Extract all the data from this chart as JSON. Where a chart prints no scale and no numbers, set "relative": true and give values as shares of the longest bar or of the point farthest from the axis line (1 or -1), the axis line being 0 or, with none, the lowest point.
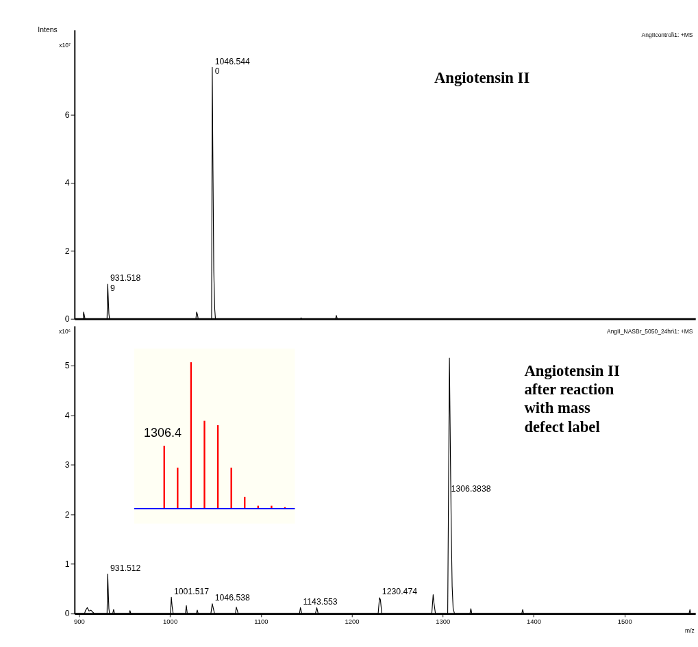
{
  "chart_data": [
    {
      "type": "line",
      "ylabel": "Intens",
      "xlim": [
        895,
        1578
      ],
      "ylim": [
        0,
        8.5
      ],
      "yticks": [
        0,
        2,
        4,
        6
      ],
      "tick_labels": "y",
      "grid": false,
      "marker": "none",
      "line_style": "solid",
      "annotations": [
        "x10⁷",
        "AngIIcontrol\\1: +MS",
        "Angiotensin II",
        {
          "text": "931.518\n9",
          "x": 931.5,
          "y": 1.02
        },
        {
          "text": "1046.544\n0",
          "x": 1046.5,
          "y": 7.4
        }
      ],
      "series": [
        {
          "color": "#000000",
          "x": [
            895,
            904.5,
            905,
            905.8,
            906.5,
            930.8,
            931.5,
            932.2,
            932.8,
            933.5,
            1028.5,
            1029.3,
            1030.3,
            1031,
            1045.8,
            1046.5,
            1047.3,
            1048.2,
            1049.2,
            1050,
            1143.5,
            1144.2,
            1145,
            1182.2,
            1183,
            1184,
            1578
          ],
          "values": [
            0,
            0,
            0.2,
            0.1,
            0,
            0,
            1.02,
            0.55,
            0.15,
            0,
            0,
            0.2,
            0.12,
            0,
            0,
            7.4,
            4.35,
            1.4,
            0.3,
            0,
            0,
            0.03,
            0,
            0,
            0.1,
            0,
            0
          ]
        }
      ]
    },
    {
      "type": "line",
      "xlabel": "m/z",
      "xlim": [
        895,
        1578
      ],
      "xticks": [
        900,
        1000,
        1100,
        1200,
        1300,
        1400,
        1500
      ],
      "ylim": [
        0,
        5.8
      ],
      "yticks": [
        0,
        1,
        2,
        3,
        4,
        5
      ],
      "grid": false,
      "marker": "none",
      "line_style": "solid",
      "annotations": [
        "x10⁶",
        "AngII_NASBr_5050_24hr\\1: +MS",
        "Angiotensin II\nafter reaction\nwith mass\ndefect label",
        {
          "text": "931.512",
          "x": 931.5,
          "y": 0.8
        },
        {
          "text": "1001.517",
          "x": 1001.5,
          "y": 0.33
        },
        {
          "text": "1046.538",
          "x": 1046.5,
          "y": 0.2
        },
        {
          "text": "1143.553",
          "x": 1143.5,
          "y": 0.12
        },
        {
          "text": "1230.474",
          "x": 1230.5,
          "y": 0.32
        },
        {
          "text": "1306.3838",
          "x": 1306.4,
          "y": 2.4
        }
      ],
      "series": [
        {
          "color": "#000000",
          "x": [
            895,
            906,
            907,
            909,
            911,
            913,
            915,
            917,
            930.8,
            931.5,
            932.2,
            932.8,
            933.5,
            937,
            938,
            939,
            955,
            956,
            957,
            1000.5,
            1001.5,
            1002.3,
            1003.5,
            1017,
            1018,
            1019,
            1029,
            1030,
            1031,
            1045,
            1046.5,
            1047.5,
            1049,
            1072,
            1073,
            1075,
            1142.5,
            1143.5,
            1145,
            1160,
            1161.5,
            1163,
            1229,
            1230.5,
            1231.5,
            1233,
            1288,
            1289.5,
            1290.5,
            1292,
            1305.5,
            1306.4,
            1307.4,
            1308.4,
            1309.4,
            1310.4,
            1311.5,
            1313,
            1330,
            1331,
            1332,
            1387,
            1388,
            1389,
            1571,
            1572,
            1573,
            1578
          ],
          "values": [
            0,
            0,
            0.06,
            0.12,
            0.05,
            0.07,
            0.03,
            0,
            0,
            0.8,
            0.4,
            0.1,
            0,
            0,
            0.08,
            0,
            0,
            0.06,
            0,
            0,
            0.33,
            0.15,
            0,
            0,
            0.16,
            0,
            0,
            0.07,
            0,
            0,
            0.2,
            0.12,
            0,
            0,
            0.13,
            0,
            0,
            0.12,
            0,
            0,
            0.12,
            0,
            0,
            0.32,
            0.28,
            0,
            0,
            0.38,
            0.2,
            0,
            0,
            2.4,
            5.15,
            3.35,
            1.75,
            0.55,
            0.1,
            0,
            0,
            0.1,
            0,
            0,
            0.08,
            0,
            0,
            0.08,
            0,
            0
          ]
        }
      ]
    },
    {
      "type": "bar",
      "relative": true,
      "categories": [
        null,
        null,
        null,
        null,
        null,
        null,
        null,
        null,
        null,
        null
      ],
      "values": [
        0.43,
        0.28,
        1,
        0.6,
        0.57,
        0.28,
        0.08,
        0.02,
        0.02,
        0.01
      ],
      "color": "#ff0000",
      "annotations": [
        "1306.4"
      ],
      "ref_lines": [
        {
          "axis": "y",
          "value": 0,
          "color": "#0000ff"
        }
      ]
    }
  ]
}
